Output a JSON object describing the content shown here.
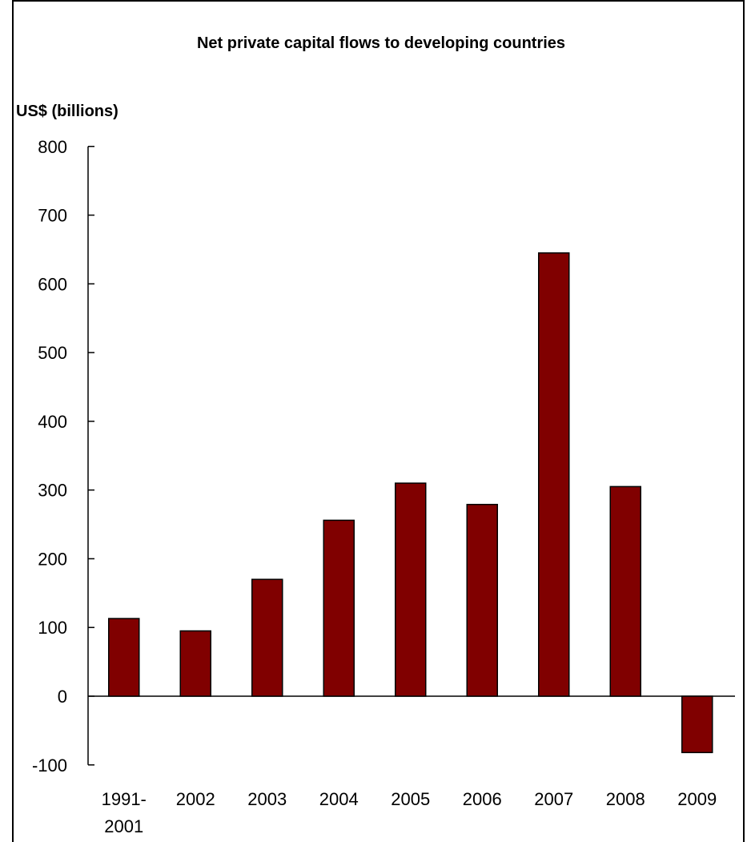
{
  "chart_data": {
    "type": "bar",
    "title": "Net private capital flows to developing countries",
    "ylabel": "US$ (billions)",
    "xlabel": "",
    "categories": [
      [
        "1991-",
        "2001"
      ],
      [
        "2002"
      ],
      [
        "2003"
      ],
      [
        "2004"
      ],
      [
        "2005"
      ],
      [
        "2006"
      ],
      [
        "2007"
      ],
      [
        "2008"
      ],
      [
        "2009"
      ]
    ],
    "values": [
      113,
      95,
      170,
      256,
      310,
      279,
      645,
      305,
      -82
    ],
    "ylim": [
      -100,
      800
    ],
    "yticks": [
      -100,
      0,
      100,
      200,
      300,
      400,
      500,
      600,
      700,
      800
    ],
    "bar_color": "#800000",
    "grid": false,
    "legend": "none"
  }
}
